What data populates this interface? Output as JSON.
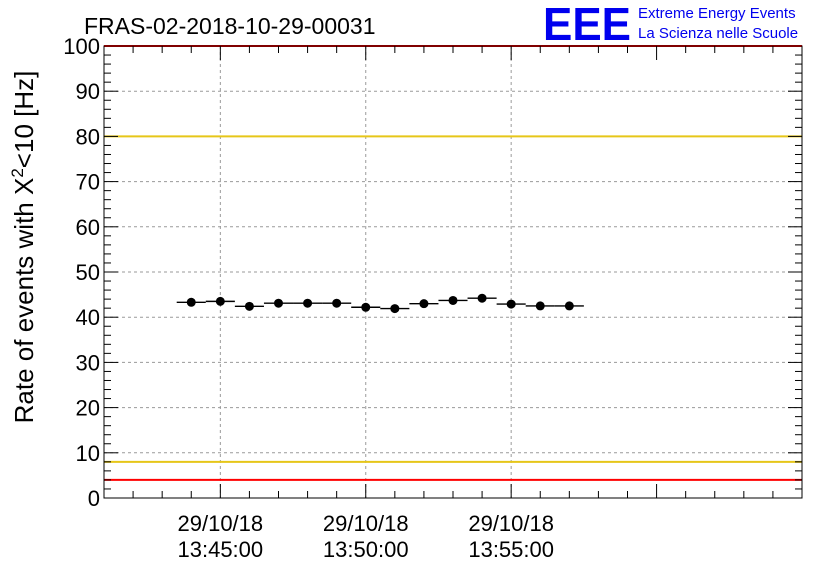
{
  "header": {
    "run_title": "FRAS-02-2018-10-29-00031",
    "logo_text": "EEE",
    "logo_line1": "Extreme Energy Events",
    "logo_line2": "La Scienza nelle Scuole",
    "logo_color": "#0000ee"
  },
  "chart_data": {
    "type": "scatter",
    "title": "FRAS-02-2018-10-29-00031",
    "xlabel": "",
    "ylabel": "Rate of events with X",
    "ylabel_sup": "2",
    "ylabel_suffix": "<10 [Hz]",
    "ylim": [
      0,
      100
    ],
    "yticks": [
      "0",
      "10",
      "20",
      "30",
      "40",
      "50",
      "60",
      "70",
      "80",
      "90",
      "100"
    ],
    "xlim_min": [
      -4.0,
      20.0
    ],
    "x_major_ticks_min": [
      0,
      5,
      10
    ],
    "x_ticks_date": [
      "29/10/18",
      "29/10/18",
      "29/10/18"
    ],
    "x_ticks_time": [
      "13:45:00",
      "13:50:00",
      "13:55:00"
    ],
    "bin_width_min": 1.0,
    "x": [
      -1.0,
      0.0,
      1.0,
      2.0,
      3.0,
      4.0,
      5.0,
      6.0,
      7.0,
      8.0,
      9.0,
      10.0,
      11.0,
      12.0
    ],
    "values": [
      43.3,
      43.5,
      42.4,
      43.1,
      43.1,
      43.1,
      42.2,
      41.9,
      43.0,
      43.7,
      44.2,
      42.9,
      42.5,
      42.5
    ],
    "reference_lines": [
      {
        "y": 100,
        "color": "#ff0000"
      },
      {
        "y": 80,
        "color": "#e6c619"
      },
      {
        "y": 8,
        "color": "#e6c619"
      },
      {
        "y": 4,
        "color": "#ff0000"
      }
    ],
    "grid": true,
    "legend": "none"
  }
}
